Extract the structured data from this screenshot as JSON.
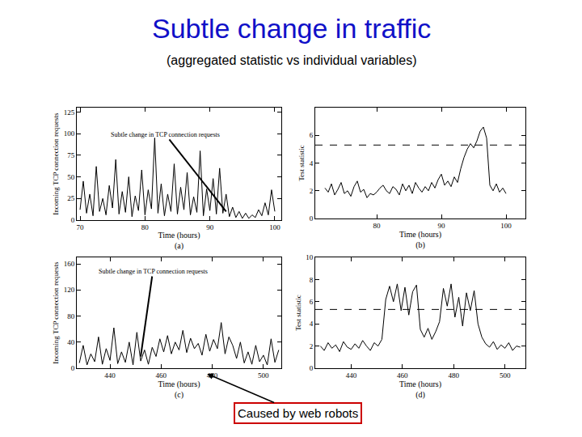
{
  "title": "Subtle change in traffic",
  "subtitle": "(aggregated statistic vs individual variables)",
  "chart_data": [
    {
      "type": "line",
      "subtitle": "(a)",
      "xlabel": "Time (hours)",
      "ylabel": "Incoming TCP connection requests",
      "xlim": [
        69.5,
        101
      ],
      "xticks": [
        70,
        80,
        90,
        100
      ],
      "ylim": [
        0,
        130
      ],
      "yticks": [
        0,
        25,
        50,
        75,
        100,
        125
      ],
      "color": "#000000",
      "annotations": [
        {
          "text": "Subtle change in TCP connection requests",
          "x": 92.5,
          "y": 10
        }
      ],
      "x": [
        70,
        70.5,
        71,
        71.5,
        72,
        72.5,
        73,
        73.5,
        74,
        74.5,
        75,
        75.5,
        76,
        76.5,
        77,
        77.5,
        78,
        78.5,
        79,
        79.5,
        80,
        80.5,
        81,
        81.5,
        82,
        82.5,
        83,
        83.5,
        84,
        84.5,
        85,
        85.5,
        86,
        86.5,
        87,
        87.5,
        88,
        88.5,
        89,
        89.5,
        90,
        90.5,
        91,
        91.5,
        92,
        92.5,
        93,
        93.5,
        94,
        94.5,
        95,
        95.5,
        96,
        96.5,
        97,
        97.5,
        98,
        98.5,
        99,
        99.5,
        100
      ],
      "values": [
        12,
        45,
        8,
        30,
        5,
        62,
        10,
        25,
        6,
        40,
        14,
        70,
        7,
        33,
        9,
        50,
        4,
        28,
        11,
        58,
        6,
        35,
        13,
        95,
        8,
        42,
        5,
        30,
        10,
        65,
        7,
        38,
        12,
        55,
        6,
        27,
        9,
        80,
        5,
        36,
        11,
        48,
        7,
        60,
        8,
        30,
        4,
        15,
        3,
        10,
        2,
        8,
        2,
        6,
        3,
        12,
        5,
        20,
        6,
        35,
        10
      ]
    },
    {
      "type": "line",
      "subtitle": "(b)",
      "xlabel": "Time (hours)",
      "ylabel": "Test statistic",
      "xlim": [
        70.5,
        103
      ],
      "xticks": [
        80,
        90,
        100
      ],
      "ylim": [
        0,
        8
      ],
      "yticks": [
        0,
        2,
        4,
        6
      ],
      "color": "#000000",
      "threshold": 5.3,
      "x": [
        72,
        72.5,
        73,
        73.5,
        74,
        74.5,
        75,
        75.5,
        76,
        76.5,
        77,
        77.5,
        78,
        78.5,
        79,
        79.5,
        80,
        80.5,
        81,
        81.5,
        82,
        82.5,
        83,
        83.5,
        84,
        84.5,
        85,
        85.5,
        86,
        86.5,
        87,
        87.5,
        88,
        88.5,
        89,
        89.5,
        90,
        90.5,
        91,
        91.5,
        92,
        92.5,
        93,
        93.5,
        94,
        94.5,
        95,
        95.5,
        96,
        96.5,
        97,
        97.5,
        98,
        98.5,
        99,
        99.5,
        100
      ],
      "values": [
        2.2,
        1.9,
        2.5,
        1.7,
        2.1,
        2.6,
        1.8,
        2.0,
        1.6,
        2.3,
        2.7,
        1.9,
        2.1,
        1.5,
        1.8,
        1.7,
        1.9,
        2.2,
        2.4,
        2.0,
        1.8,
        2.3,
        2.1,
        1.7,
        2.5,
        2.0,
        2.4,
        1.8,
        2.6,
        2.2,
        1.9,
        2.3,
        2.0,
        2.6,
        2.2,
        2.8,
        3.2,
        2.4,
        2.7,
        2.3,
        3.0,
        2.6,
        3.6,
        4.4,
        5.0,
        5.4,
        5.1,
        5.6,
        6.3,
        6.6,
        5.8,
        2.4,
        2.0,
        2.5,
        1.9,
        2.2,
        1.8
      ]
    },
    {
      "type": "line",
      "subtitle": "(c)",
      "xlabel": "Time (hours)",
      "ylabel": "Incoming TCP connection requests",
      "xlim": [
        427,
        507
      ],
      "xticks": [
        440,
        460,
        480,
        500
      ],
      "ylim": [
        0,
        170
      ],
      "yticks": [
        0,
        40,
        80,
        120,
        160
      ],
      "color": "#000000",
      "annotations": [
        {
          "text": "Subtle change in TCP connection requests",
          "x": 452,
          "y": 18
        }
      ],
      "note": {
        "text": "Caused by web robots",
        "x": 478
      },
      "x": [
        428,
        429.5,
        431,
        432.5,
        434,
        435.5,
        437,
        438.5,
        440,
        441.5,
        443,
        444.5,
        446,
        447.5,
        449,
        450.5,
        452,
        453.5,
        455,
        456.5,
        458,
        459.5,
        461,
        462.5,
        464,
        465.5,
        467,
        468.5,
        470,
        471.5,
        473,
        474.5,
        476,
        477.5,
        479,
        480.5,
        482,
        483.5,
        485,
        486.5,
        488,
        489.5,
        491,
        492.5,
        494,
        495.5,
        497,
        498.5,
        500,
        501.5,
        503,
        504.5,
        506
      ],
      "values": [
        8,
        35,
        5,
        22,
        10,
        48,
        6,
        30,
        12,
        62,
        7,
        25,
        9,
        40,
        5,
        55,
        11,
        28,
        6,
        32,
        18,
        45,
        25,
        50,
        22,
        40,
        28,
        58,
        24,
        46,
        30,
        38,
        20,
        52,
        26,
        44,
        30,
        70,
        22,
        48,
        35,
        15,
        40,
        8,
        25,
        6,
        35,
        10,
        20,
        5,
        45,
        9,
        28
      ]
    },
    {
      "type": "line",
      "subtitle": "(d)",
      "xlabel": "Time (hours)",
      "ylabel": "Test statistic",
      "xlim": [
        426,
        508
      ],
      "xticks": [
        440,
        460,
        480,
        500
      ],
      "ylim": [
        0,
        10
      ],
      "yticks": [
        0,
        2,
        4,
        6,
        8,
        10
      ],
      "color": "#000000",
      "threshold": 5.3,
      "x": [
        428,
        429.5,
        431,
        432.5,
        434,
        435.5,
        437,
        438.5,
        440,
        441.5,
        443,
        444.5,
        446,
        447.5,
        449,
        450.5,
        452,
        453.5,
        455,
        456.5,
        458,
        459.5,
        461,
        462.5,
        464,
        465.5,
        467,
        468.5,
        470,
        471.5,
        473,
        474.5,
        476,
        477.5,
        479,
        480.5,
        482,
        483.5,
        485,
        486.5,
        488,
        489.5,
        491,
        492.5,
        494,
        495.5,
        497,
        498.5,
        500,
        501.5,
        503,
        504.5,
        506
      ],
      "values": [
        2.0,
        1.6,
        2.3,
        1.8,
        2.1,
        1.5,
        2.4,
        1.9,
        1.7,
        2.2,
        1.8,
        2.5,
        2.0,
        1.6,
        2.3,
        2.0,
        2.6,
        6.2,
        7.4,
        6.0,
        7.6,
        5.2,
        7.3,
        4.8,
        6.9,
        7.5,
        3.5,
        2.8,
        3.6,
        2.6,
        3.3,
        4.2,
        7.2,
        5.6,
        7.6,
        4.6,
        6.4,
        3.8,
        6.8,
        5.2,
        7.0,
        4.0,
        2.8,
        2.2,
        1.9,
        2.4,
        1.7,
        2.1,
        1.8,
        2.3,
        1.6,
        2.0,
        1.9
      ]
    }
  ]
}
